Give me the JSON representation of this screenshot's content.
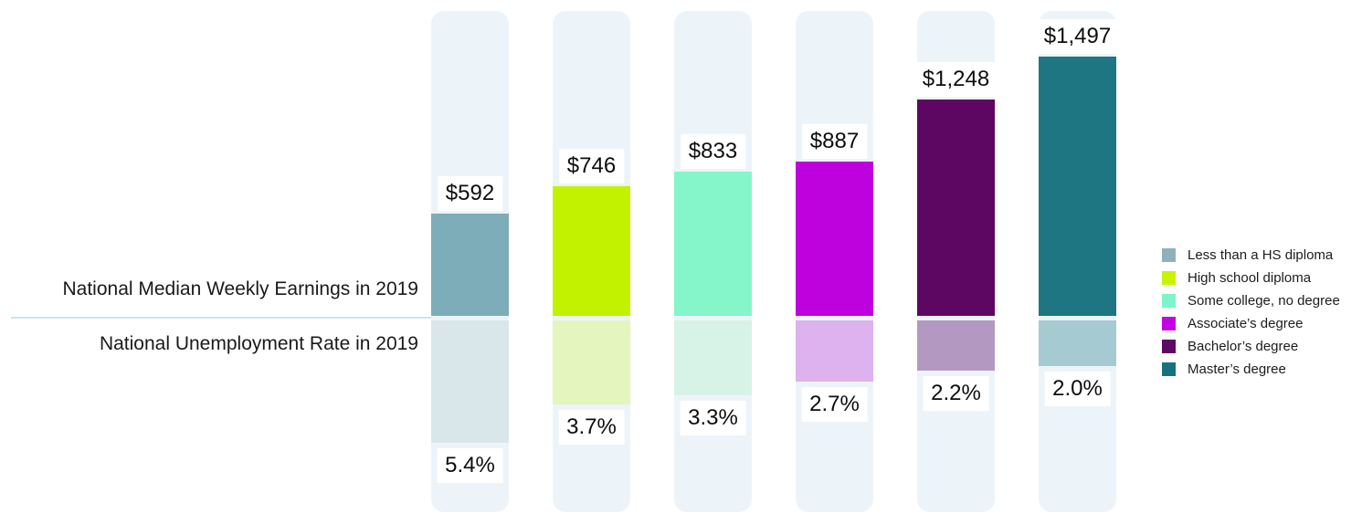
{
  "chart_data": {
    "type": "bar",
    "orientation": "diverging-vertical",
    "title": "",
    "grid": "off",
    "axes": "none (value labels printed on bars)",
    "legend_position": "right",
    "categories": [
      "Less than a HS diploma",
      "High school diploma",
      "Some college, no degree",
      "Associate’s degree",
      "Bachelor’s degree",
      "Master’s degree"
    ],
    "series": [
      {
        "name": "National Median Weekly Earnings in 2019",
        "direction": "up",
        "values": [
          592,
          746,
          833,
          887,
          1248,
          1497
        ],
        "labels": [
          "$592",
          "$746",
          "$833",
          "$887",
          "$1,248",
          "$1,497"
        ]
      },
      {
        "name": "National Unemployment Rate in 2019",
        "direction": "down",
        "values": [
          5.4,
          3.7,
          3.3,
          2.7,
          2.2,
          2.0
        ],
        "labels": [
          "5.4%",
          "3.7%",
          "3.3%",
          "2.7%",
          "2.2%",
          "2.0%"
        ]
      }
    ],
    "palette": [
      {
        "category": "Less than a HS diploma",
        "bar": "#7dadb8",
        "bar_light": "#d9e7ea",
        "legend": "#8cb3bc"
      },
      {
        "category": "High school diploma",
        "bar": "#c3f201",
        "bar_light": "#e4f5be",
        "legend": "#c8f400"
      },
      {
        "category": "Some college, no degree",
        "bar": "#85f6c9",
        "bar_light": "#d7f3e8",
        "legend": "#7df5c8"
      },
      {
        "category": "Associate’s degree",
        "bar": "#bd02dd",
        "bar_light": "#ddb2ef",
        "legend": "#c303e3"
      },
      {
        "category": "Bachelor’s degree",
        "bar": "#5e0762",
        "bar_light": "#b399c1",
        "legend": "#5c0a63"
      },
      {
        "category": "Master’s degree",
        "bar": "#1d7682",
        "bar_light": "#a6cad2",
        "legend": "#17727f"
      }
    ],
    "column_background_color": "#edf4f9",
    "divider_color": "#cde3ef"
  }
}
